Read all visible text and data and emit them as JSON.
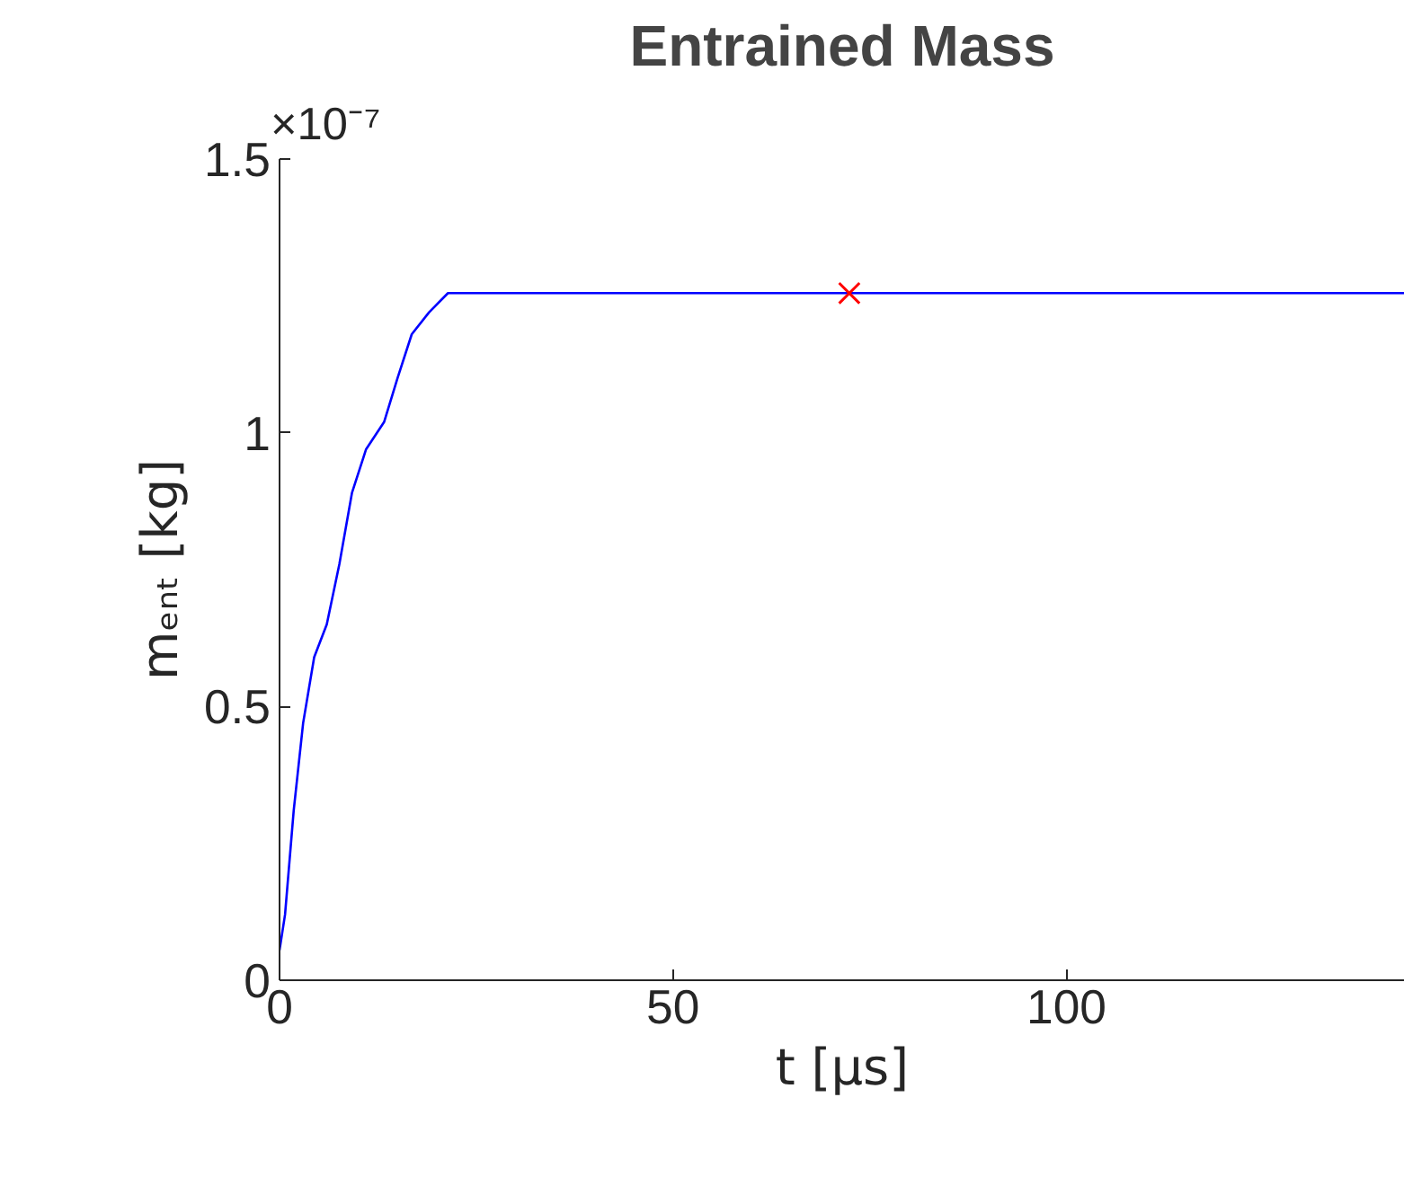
{
  "chart_data": {
    "type": "line",
    "title": "Entrained Mass",
    "xlabel": "t [μs]",
    "ylabel": "mₑₙₜ [kg]",
    "annotations": [
      "×10⁻⁷"
    ],
    "xlim": [
      0,
      143
    ],
    "xticks": [
      0,
      50,
      100
    ],
    "ylim": [
      0,
      1.5
    ],
    "yticks": [
      0,
      0.5,
      1,
      1.5
    ],
    "grid": false,
    "series": [
      {
        "color": "#0000ff",
        "marker": "none",
        "line_style": "solid",
        "x": [
          0,
          0.7,
          1.8,
          3,
          4.4,
          6,
          7.6,
          9.2,
          11,
          13.3,
          15,
          16.8,
          19,
          21.4,
          143
        ],
        "values": [
          0.055,
          0.12,
          0.31,
          0.47,
          0.59,
          0.65,
          0.76,
          0.89,
          0.97,
          1.02,
          1.1,
          1.18,
          1.22,
          1.255,
          1.255
        ]
      },
      {
        "type": "scatter",
        "color": "#ff0000",
        "marker": "cross",
        "x": [
          72.4
        ],
        "values": [
          1.255
        ]
      }
    ]
  }
}
